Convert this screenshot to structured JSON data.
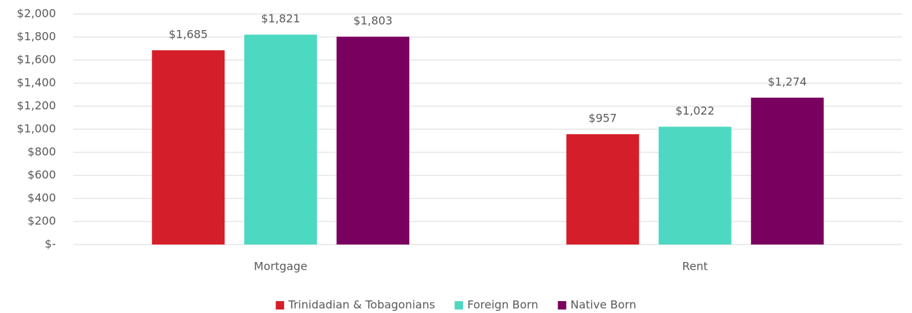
{
  "chart_data": {
    "type": "bar",
    "categories": [
      "Mortgage",
      "Rent"
    ],
    "series": [
      {
        "name": "Trinidadian & Tobagonians",
        "color": "#d41f2a",
        "values": [
          1685,
          957
        ],
        "value_labels": [
          "$1,685",
          "$957"
        ]
      },
      {
        "name": "Foreign Born",
        "color": "#4dd8c2",
        "values": [
          1821,
          1022
        ],
        "value_labels": [
          "$1,821",
          "$1,022"
        ]
      },
      {
        "name": "Native Born",
        "color": "#7a0060",
        "values": [
          1803,
          1274
        ],
        "value_labels": [
          "$1,803",
          "$1,274"
        ]
      }
    ],
    "ylim": [
      0,
      2000
    ],
    "yticks": [
      {
        "value": 0,
        "label": "$-"
      },
      {
        "value": 200,
        "label": "$200"
      },
      {
        "value": 400,
        "label": "$400"
      },
      {
        "value": 600,
        "label": "$600"
      },
      {
        "value": 800,
        "label": "$800"
      },
      {
        "value": 1000,
        "label": "$1,000"
      },
      {
        "value": 1200,
        "label": "$1,200"
      },
      {
        "value": 1400,
        "label": "$1,400"
      },
      {
        "value": 1600,
        "label": "$1,600"
      },
      {
        "value": 1800,
        "label": "$1,800"
      },
      {
        "value": 2000,
        "label": "$2,000"
      }
    ],
    "grid": true,
    "legend": "bottom"
  }
}
